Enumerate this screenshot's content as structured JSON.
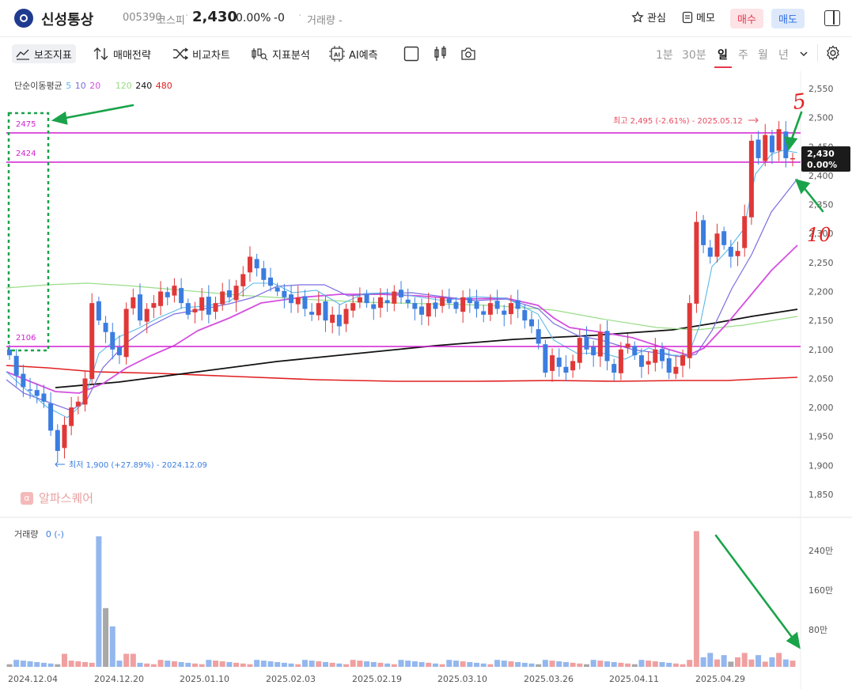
{
  "header": {
    "name": "신성통상",
    "code": "005390",
    "market": "코스피",
    "separator": "·",
    "price": "2,430",
    "change_pct": "0.00%",
    "change_amt": "-0",
    "volume_label": "거래량 -",
    "watch_label": "관심",
    "memo_label": "메모",
    "buy_label": "매수",
    "sell_label": "매도"
  },
  "toolbar": {
    "indicators": "보조지표",
    "strategy": "매매전략",
    "compare": "비교차트",
    "analysis": "지표분석",
    "ai": "AI예측",
    "timeframes": [
      "1분",
      "30분",
      "일",
      "주",
      "월",
      "년"
    ],
    "selected_timeframe": "일"
  },
  "ma_legend": {
    "label": "단순이동평균",
    "p5": "5",
    "p10": "10",
    "p20": "20",
    "p120": "120",
    "p240": "240",
    "p480": "480",
    "colors": {
      "p5": "#5bb8e8",
      "p10": "#7a6ee0",
      "p20": "#d54fe0",
      "p120": "#99dd88",
      "p240": "#111111",
      "p480": "#e02020"
    }
  },
  "annotations": {
    "high": "최고 2,495 (-2.61%) - 2025.05.12",
    "low": "최저 1,900 (+27.89%) - 2024.12.09",
    "line_2475": "2475",
    "line_2424": "2424",
    "line_2106": "2106",
    "hand_5": "5",
    "hand_10": "10"
  },
  "price_badge": {
    "price": "2,430",
    "pct": "0.00%"
  },
  "watermark": "알파스퀘어",
  "volume_legend": {
    "label": "거래량",
    "value": "0 (-)"
  },
  "chart_data": {
    "type": "candlestick",
    "yaxis": [
      "2,550",
      "2,500",
      "2,450",
      "2,400",
      "2,350",
      "2,300",
      "2,250",
      "2,200",
      "2,150",
      "2,100",
      "2,050",
      "2,000",
      "1,950",
      "1,900",
      "1,850"
    ],
    "ylim": [
      1820,
      2570
    ],
    "xaxis": [
      "2024.12.04",
      "2024.12.20",
      "2025.01.10",
      "2025.02.03",
      "2025.02.19",
      "2025.03.10",
      "2025.03.26",
      "2025.04.11",
      "2025.04.29"
    ],
    "volume_axis": [
      "240만",
      "160만",
      "80만"
    ],
    "hlines": [
      2475,
      2424,
      2106
    ],
    "closes": [
      2090,
      2055,
      2035,
      2030,
      2020,
      2010,
      1960,
      1925,
      1970,
      2000,
      2010,
      2050,
      2180,
      2150,
      2130,
      2100,
      2090,
      2170,
      2190,
      2150,
      2170,
      2180,
      2200,
      2190,
      2210,
      2180,
      2160,
      2170,
      2190,
      2160,
      2180,
      2200,
      2190,
      2210,
      2230,
      2260,
      2240,
      2220,
      2210,
      2200,
      2190,
      2180,
      2190,
      2170,
      2160,
      2180,
      2150,
      2160,
      2140,
      2170,
      2180,
      2190,
      2180,
      2170,
      2190,
      2180,
      2200,
      2190,
      2180,
      2170,
      2160,
      2180,
      2170,
      2190,
      2180,
      2170,
      2190,
      2180,
      2170,
      2160,
      2180,
      2170,
      2160,
      2180,
      2170,
      2150,
      2140,
      2110,
      2060,
      2090,
      2070,
      2060,
      2080,
      2120,
      2100,
      2090,
      2130,
      2080,
      2060,
      2100,
      2110,
      2090,
      2070,
      2080,
      2100,
      2080,
      2060,
      2070,
      2090,
      2180,
      2320,
      2280,
      2260,
      2300,
      2280,
      2260,
      2270,
      2330,
      2460,
      2430,
      2470,
      2440,
      2480,
      2430,
      2430
    ]
  }
}
